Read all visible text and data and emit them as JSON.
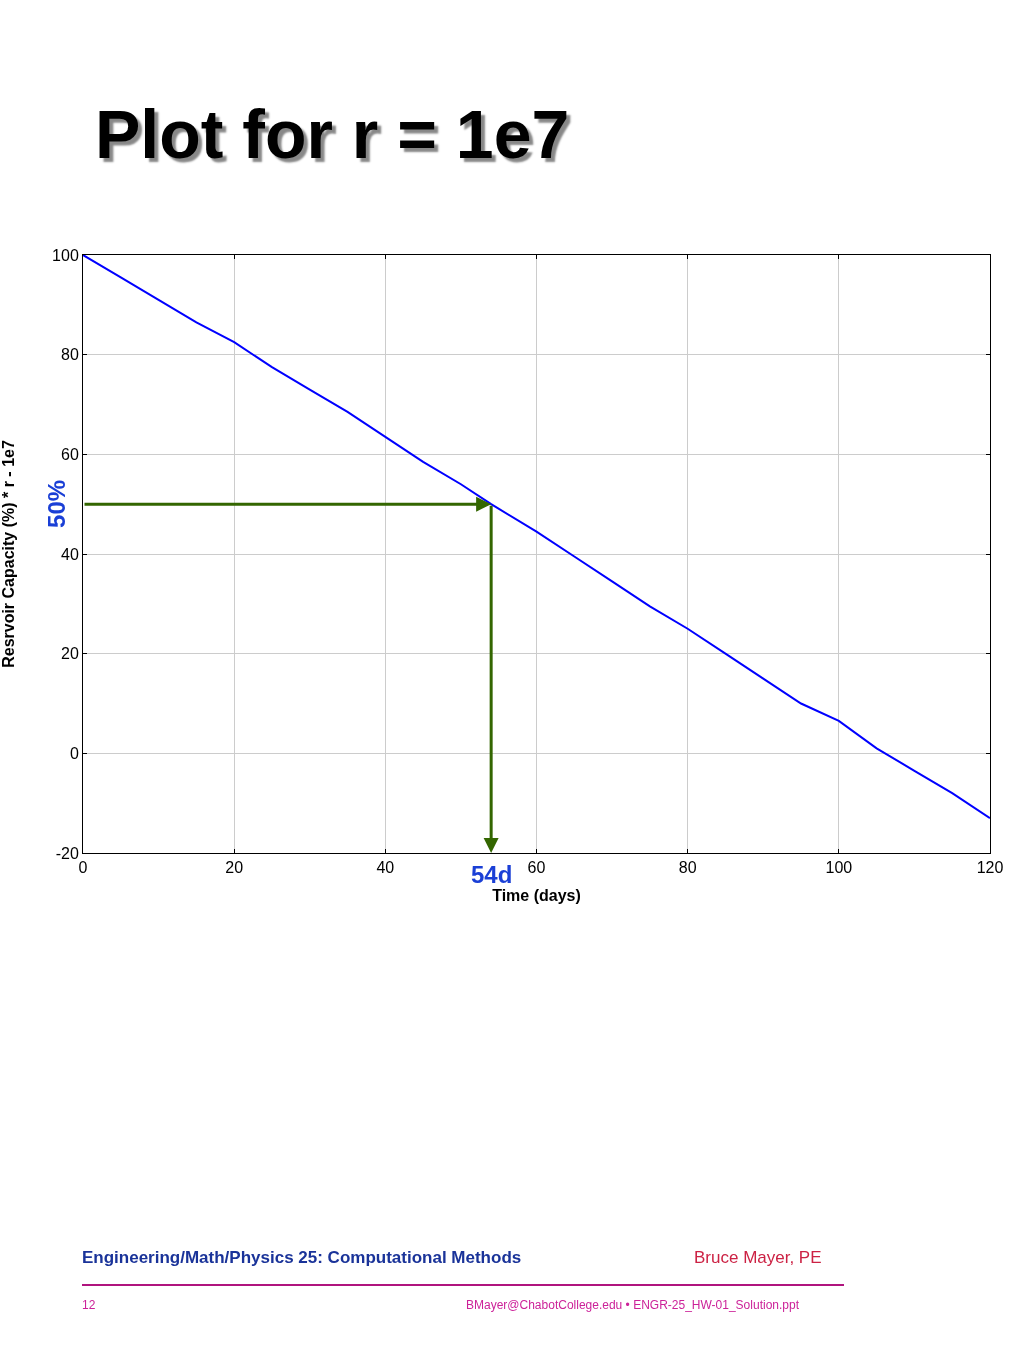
{
  "chart_data": {
    "type": "line",
    "title": "Plot for r = 1e7",
    "xlabel": "Time (days)",
    "ylabel": "Resrvoir Capacity (%) * r - 1e7",
    "x": [
      0,
      5,
      10,
      15,
      20,
      25,
      30,
      35,
      40,
      45,
      50,
      54,
      60,
      65,
      70,
      75,
      80,
      85,
      90,
      95,
      100,
      105,
      110,
      115,
      120
    ],
    "series": [
      {
        "color": "#0000ff",
        "values": [
          100,
          95.5,
          91,
          86.5,
          82.5,
          77.5,
          73,
          68.5,
          63.5,
          58.5,
          54,
          50,
          44.5,
          39.5,
          34.5,
          29.5,
          25,
          20,
          15,
          10,
          6.5,
          1,
          -3.5,
          -8,
          -13
        ]
      }
    ],
    "xlim": [
      0,
      120
    ],
    "xticks": [
      0,
      20,
      40,
      60,
      80,
      100,
      120
    ],
    "ylim": [
      -20,
      100
    ],
    "yticks": [
      -20,
      0,
      20,
      40,
      60,
      80,
      100
    ],
    "grid": true,
    "marker": "none",
    "line_style": "solid",
    "annotations": [
      {
        "text": "50%",
        "x": 54,
        "y": 50
      },
      {
        "text": "54d",
        "x": 54,
        "y": 50
      },
      "Engineering/Math/Physics 25: Computational Methods",
      "Bruce Mayer, PE",
      "12",
      "BMayer@ChabotCollege.edu  • ENGR-25_HW-01_Solution.ppt"
    ]
  }
}
